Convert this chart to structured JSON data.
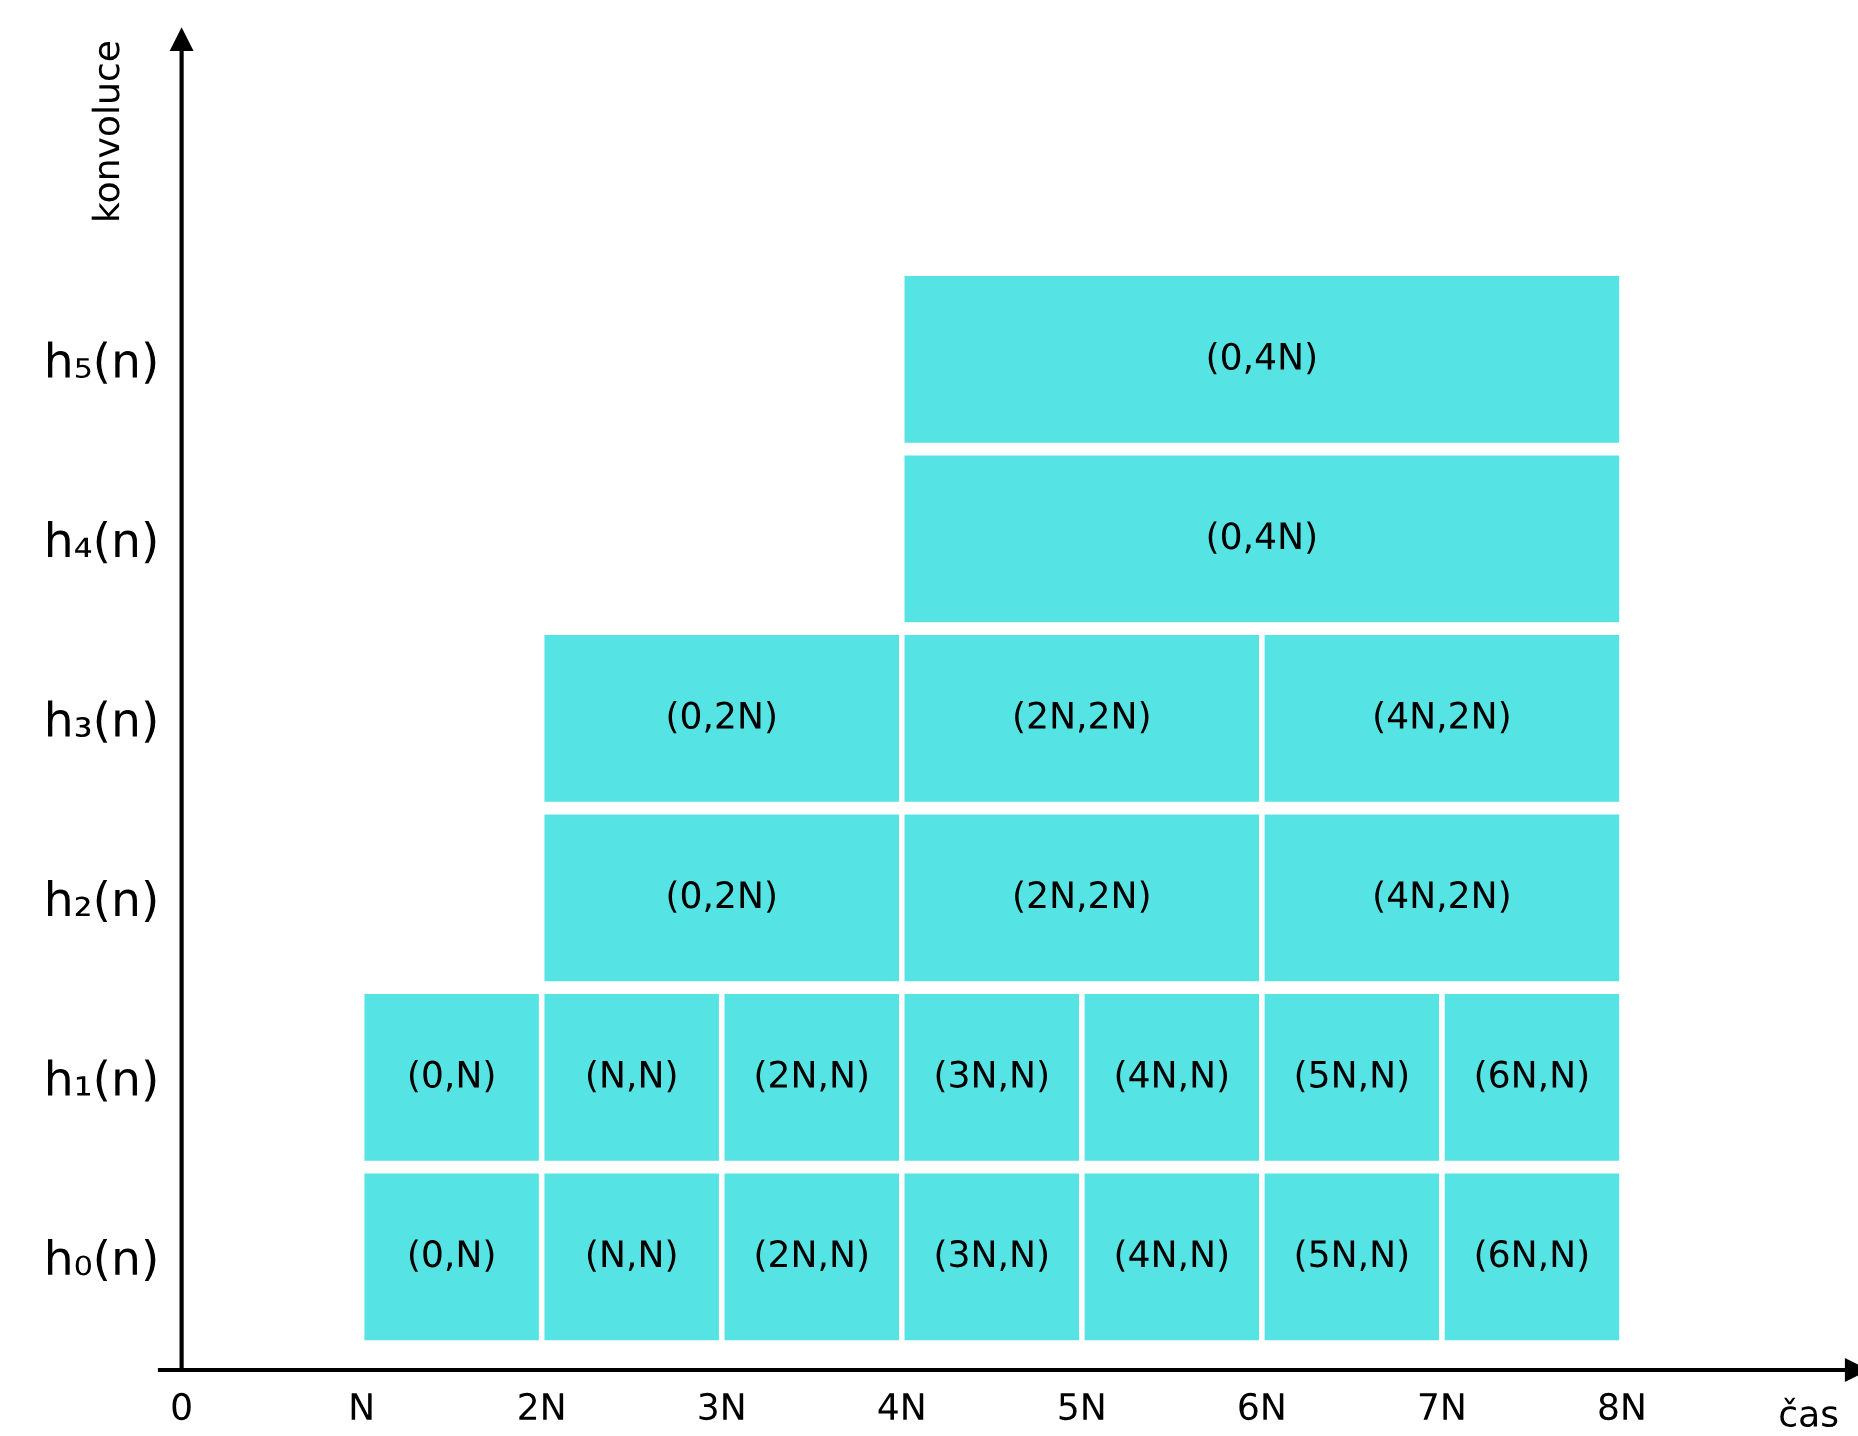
{
  "chart_data": {
    "type": "bar",
    "orientation": "horizontal",
    "xlabel": "čas",
    "ylabel": "konvoluce",
    "categories": [
      "h₅(n)",
      "h₄(n)",
      "h₃(n)",
      "h₂(n)",
      "h₁(n)",
      "h₀(n)"
    ],
    "series": [
      {
        "color": "#55e3e3",
        "values": [
          4,
          4,
          2,
          2,
          1,
          1
        ],
        "base": [
          4,
          4,
          2,
          2,
          1,
          1
        ]
      },
      {
        "color": "#55e3e3",
        "values": [
          null,
          null,
          2,
          2,
          1,
          1
        ],
        "base": [
          null,
          null,
          4,
          4,
          2,
          2
        ]
      },
      {
        "color": "#55e3e3",
        "values": [
          null,
          null,
          2,
          2,
          1,
          1
        ],
        "base": [
          null,
          null,
          6,
          6,
          3,
          3
        ]
      },
      {
        "color": "#55e3e3",
        "values": [
          null,
          null,
          null,
          null,
          1,
          1
        ],
        "base": [
          null,
          null,
          null,
          null,
          4,
          4
        ]
      },
      {
        "color": "#55e3e3",
        "values": [
          null,
          null,
          null,
          null,
          1,
          1
        ],
        "base": [
          null,
          null,
          null,
          null,
          5,
          5
        ]
      },
      {
        "color": "#55e3e3",
        "values": [
          null,
          null,
          null,
          null,
          1,
          1
        ],
        "base": [
          null,
          null,
          null,
          null,
          6,
          6
        ]
      },
      {
        "color": "#55e3e3",
        "values": [
          null,
          null,
          null,
          null,
          1,
          1
        ],
        "base": [
          null,
          null,
          null,
          null,
          7,
          7
        ]
      }
    ],
    "annotations": [
      {
        "text": "(0,4N)",
        "x": 6,
        "y": "h₅(n)"
      },
      {
        "text": "(0,4N)",
        "x": 6,
        "y": "h₄(n)"
      },
      {
        "text": "(0,2N)",
        "x": 3,
        "y": "h₃(n)"
      },
      {
        "text": "(2N,2N)",
        "x": 5,
        "y": "h₃(n)"
      },
      {
        "text": "(4N,2N)",
        "x": 7,
        "y": "h₃(n)"
      },
      {
        "text": "(0,2N)",
        "x": 3,
        "y": "h₂(n)"
      },
      {
        "text": "(2N,2N)",
        "x": 5,
        "y": "h₂(n)"
      },
      {
        "text": "(4N,2N)",
        "x": 7,
        "y": "h₂(n)"
      },
      {
        "text": "(0,N)",
        "x": 1.5,
        "y": "h₁(n)"
      },
      {
        "text": "(N,N)",
        "x": 2.5,
        "y": "h₁(n)"
      },
      {
        "text": "(2N,N)",
        "x": 3.5,
        "y": "h₁(n)"
      },
      {
        "text": "(3N,N)",
        "x": 4.5,
        "y": "h₁(n)"
      },
      {
        "text": "(4N,N)",
        "x": 5.5,
        "y": "h₁(n)"
      },
      {
        "text": "(5N,N)",
        "x": 6.5,
        "y": "h₁(n)"
      },
      {
        "text": "(6N,N)",
        "x": 7.5,
        "y": "h₁(n)"
      },
      {
        "text": "(0,N)",
        "x": 1.5,
        "y": "h₀(n)"
      },
      {
        "text": "(N,N)",
        "x": 2.5,
        "y": "h₀(n)"
      },
      {
        "text": "(2N,N)",
        "x": 3.5,
        "y": "h₀(n)"
      },
      {
        "text": "(3N,N)",
        "x": 4.5,
        "y": "h₀(n)"
      },
      {
        "text": "(4N,N)",
        "x": 5.5,
        "y": "h₀(n)"
      },
      {
        "text": "(5N,N)",
        "x": 6.5,
        "y": "h₀(n)"
      },
      {
        "text": "(6N,N)",
        "x": 7.5,
        "y": "h₀(n)"
      }
    ],
    "xlim": [
      -0.12,
      9.3
    ],
    "xticks": [
      0,
      {
        "value": 1,
        "label": "N"
      },
      {
        "value": 2,
        "label": "2N"
      },
      {
        "value": 3,
        "label": "3N"
      },
      {
        "value": 4,
        "label": "4N"
      },
      {
        "value": 5,
        "label": "5N"
      },
      {
        "value": 6,
        "label": "6N"
      },
      {
        "value": 7,
        "label": "7N"
      },
      {
        "value": 8,
        "label": "8N"
      }
    ],
    "grid": false,
    "legend": false
  }
}
